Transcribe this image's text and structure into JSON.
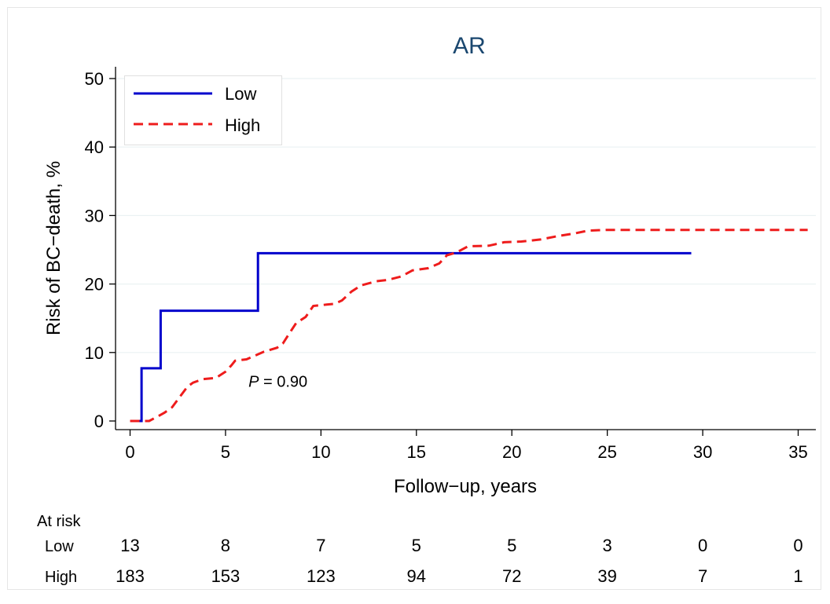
{
  "chart_data": {
    "type": "line",
    "title": "AR",
    "xlabel": "Follow−up, years",
    "ylabel": "Risk of BC−death, %",
    "xlim": [
      0,
      35.5
    ],
    "ylim": [
      0,
      50
    ],
    "xticks": [
      "0",
      "5",
      "10",
      "15",
      "20",
      "25",
      "30",
      "35"
    ],
    "yticks": [
      "0",
      "10",
      "20",
      "30",
      "40",
      "50"
    ],
    "grid": true,
    "legend_position": "top-left",
    "annotation": {
      "italic": "P",
      "rest": " = 0.90",
      "x": 6.2,
      "y": 5
    },
    "series": [
      {
        "name": "Low",
        "color": "#0000cc",
        "style": "solid",
        "points": [
          [
            0,
            0
          ],
          [
            0.6,
            0
          ],
          [
            0.6,
            7.7
          ],
          [
            1.6,
            7.7
          ],
          [
            1.6,
            16.1
          ],
          [
            6.7,
            16.1
          ],
          [
            6.7,
            24.5
          ],
          [
            29.4,
            24.5
          ]
        ]
      },
      {
        "name": "High",
        "color": "#ee1c1c",
        "style": "dashed",
        "points": [
          [
            0,
            0
          ],
          [
            1.0,
            0
          ],
          [
            1.4,
            0.6
          ],
          [
            1.8,
            1.2
          ],
          [
            2.2,
            2.0
          ],
          [
            2.6,
            3.5
          ],
          [
            3.0,
            5.0
          ],
          [
            3.3,
            5.6
          ],
          [
            3.8,
            6.1
          ],
          [
            4.5,
            6.3
          ],
          [
            5.0,
            7.2
          ],
          [
            5.3,
            8.1
          ],
          [
            5.5,
            8.8
          ],
          [
            6.1,
            9.0
          ],
          [
            6.5,
            9.5
          ],
          [
            7.0,
            10.1
          ],
          [
            7.7,
            10.7
          ],
          [
            8.0,
            11.3
          ],
          [
            8.3,
            12.6
          ],
          [
            8.7,
            14.3
          ],
          [
            9.2,
            15.2
          ],
          [
            9.6,
            16.8
          ],
          [
            10.3,
            17.0
          ],
          [
            10.7,
            17.1
          ],
          [
            11.1,
            17.6
          ],
          [
            11.6,
            18.9
          ],
          [
            12.1,
            19.8
          ],
          [
            12.9,
            20.4
          ],
          [
            13.5,
            20.6
          ],
          [
            14.2,
            21.1
          ],
          [
            14.8,
            22.0
          ],
          [
            15.6,
            22.3
          ],
          [
            16.2,
            23.0
          ],
          [
            16.6,
            24.2
          ],
          [
            17.1,
            24.6
          ],
          [
            17.7,
            25.5
          ],
          [
            18.8,
            25.6
          ],
          [
            19.6,
            26.1
          ],
          [
            20.5,
            26.2
          ],
          [
            21.5,
            26.5
          ],
          [
            22.4,
            27.0
          ],
          [
            23.3,
            27.4
          ],
          [
            24.0,
            27.8
          ],
          [
            25.0,
            27.9
          ],
          [
            35.5,
            27.9
          ]
        ]
      }
    ],
    "at_risk": {
      "title": "At risk",
      "times": [
        0,
        5,
        10,
        15,
        20,
        25,
        30,
        35
      ],
      "rows": [
        {
          "label": "Low",
          "values": [
            "13",
            "8",
            "7",
            "5",
            "5",
            "3",
            "0",
            "0"
          ]
        },
        {
          "label": "High",
          "values": [
            "183",
            "153",
            "123",
            "94",
            "72",
            "39",
            "7",
            "1"
          ]
        }
      ]
    }
  }
}
